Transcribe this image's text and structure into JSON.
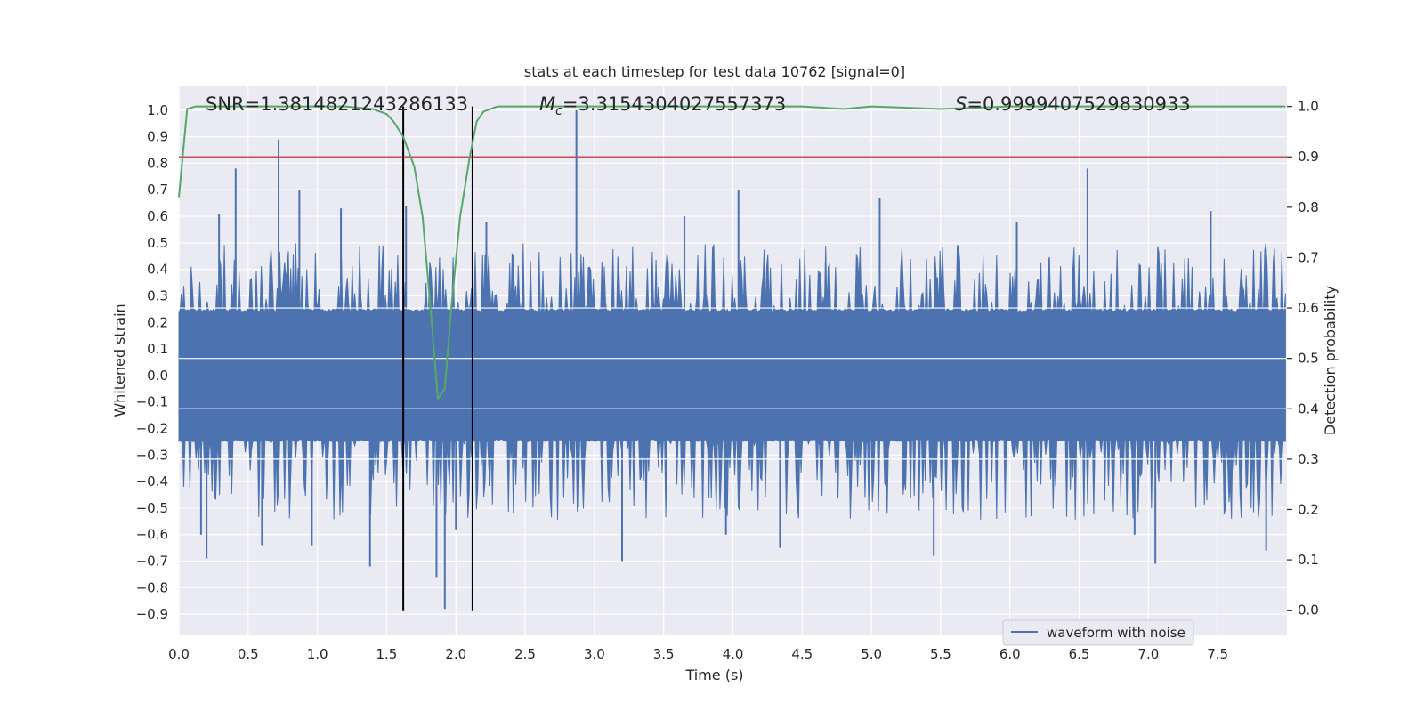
{
  "chart_data": {
    "type": "line",
    "title": "stats at each timestep for test data 10762 [signal=0]",
    "xlabel": "Time (s)",
    "ylabel": "Whitened strain",
    "y2label": "Detection probability",
    "xlim": [
      0.0,
      8.0
    ],
    "ylim": [
      -0.98,
      1.09
    ],
    "y2lim": [
      -0.05,
      1.04
    ],
    "xticks": [
      "0.0",
      "0.5",
      "1.0",
      "1.5",
      "2.0",
      "2.5",
      "3.0",
      "3.5",
      "4.0",
      "4.5",
      "5.0",
      "5.5",
      "6.0",
      "6.5",
      "7.0",
      "7.5"
    ],
    "yticks": [
      "1.0",
      "0.9",
      "0.8",
      "0.7",
      "0.6",
      "0.5",
      "0.4",
      "0.3",
      "0.2",
      "0.1",
      "0.0",
      "−0.1",
      "−0.2",
      "−0.3",
      "−0.4",
      "−0.5",
      "−0.6",
      "−0.7",
      "−0.8",
      "−0.9"
    ],
    "y2ticks": [
      "1.0",
      "0.9",
      "0.8",
      "0.7",
      "0.6",
      "0.5",
      "0.4",
      "0.3",
      "0.2",
      "0.1",
      "0.0"
    ],
    "annotations": {
      "snr": "SNR=1.3814821243286133",
      "mc_symbol": "M",
      "mc_sub": "c",
      "mc_value": "=3.3154304027557373",
      "s_symbol": "S",
      "s_value": "=0.9999407529830933"
    },
    "legend": {
      "label": "waveform with noise",
      "placement": "lower-right"
    },
    "colors": {
      "waveform": "#4c72b0",
      "probability": "#55a868",
      "threshold": "#c44e52",
      "marker": "#000000",
      "axes_bg": "#eaeaf2",
      "grid": "#ffffff"
    },
    "waveform": {
      "name": "waveform with noise",
      "envelope": 0.24,
      "typical_peak": [
        0.25,
        0.5
      ],
      "spikes": [
        {
          "t": 0.41,
          "v": 0.78
        },
        {
          "t": 0.72,
          "v": 0.89
        },
        {
          "t": 0.87,
          "v": 0.7
        },
        {
          "t": 0.29,
          "v": 0.61
        },
        {
          "t": 1.17,
          "v": 0.63
        },
        {
          "t": 1.64,
          "v": 0.64
        },
        {
          "t": 2.87,
          "v": 1.0
        },
        {
          "t": 4.04,
          "v": 0.7
        },
        {
          "t": 5.06,
          "v": 0.67
        },
        {
          "t": 6.56,
          "v": 0.78
        },
        {
          "t": 3.65,
          "v": 0.6
        },
        {
          "t": 7.45,
          "v": 0.62
        },
        {
          "t": 2.22,
          "v": 0.58
        },
        {
          "t": 6.05,
          "v": 0.58
        },
        {
          "t": 0.16,
          "v": -0.6
        },
        {
          "t": 0.2,
          "v": -0.69
        },
        {
          "t": 0.6,
          "v": -0.64
        },
        {
          "t": 0.96,
          "v": -0.64
        },
        {
          "t": 1.38,
          "v": -0.72
        },
        {
          "t": 1.92,
          "v": -0.88
        },
        {
          "t": 1.86,
          "v": -0.76
        },
        {
          "t": 2.0,
          "v": -0.58
        },
        {
          "t": 3.2,
          "v": -0.7
        },
        {
          "t": 4.34,
          "v": -0.65
        },
        {
          "t": 5.45,
          "v": -0.68
        },
        {
          "t": 7.05,
          "v": -0.71
        },
        {
          "t": 7.85,
          "v": -0.66
        },
        {
          "t": 6.9,
          "v": -0.6
        },
        {
          "t": 3.95,
          "v": -0.6
        }
      ]
    },
    "probability": {
      "name": "Detection probability",
      "x": [
        0.0,
        0.06,
        0.12,
        0.2,
        0.4,
        0.8,
        1.2,
        1.4,
        1.5,
        1.55,
        1.62,
        1.7,
        1.76,
        1.82,
        1.87,
        1.92,
        1.97,
        2.03,
        2.1,
        2.15,
        2.2,
        2.25,
        2.3,
        2.5,
        3.0,
        3.5,
        4.0,
        4.5,
        4.8,
        5.0,
        5.5,
        6.0,
        7.0,
        7.99
      ],
      "y": [
        0.82,
        0.995,
        1.0,
        1.0,
        1.0,
        1.0,
        1.0,
        0.995,
        0.985,
        0.97,
        0.94,
        0.88,
        0.78,
        0.59,
        0.42,
        0.44,
        0.61,
        0.78,
        0.9,
        0.97,
        0.99,
        0.995,
        1.0,
        1.0,
        1.0,
        1.0,
        1.0,
        1.0,
        0.995,
        1.0,
        0.995,
        1.0,
        1.0,
        1.0
      ]
    },
    "threshold": {
      "y2": 0.9
    },
    "markers": [
      1.62,
      2.12
    ]
  }
}
